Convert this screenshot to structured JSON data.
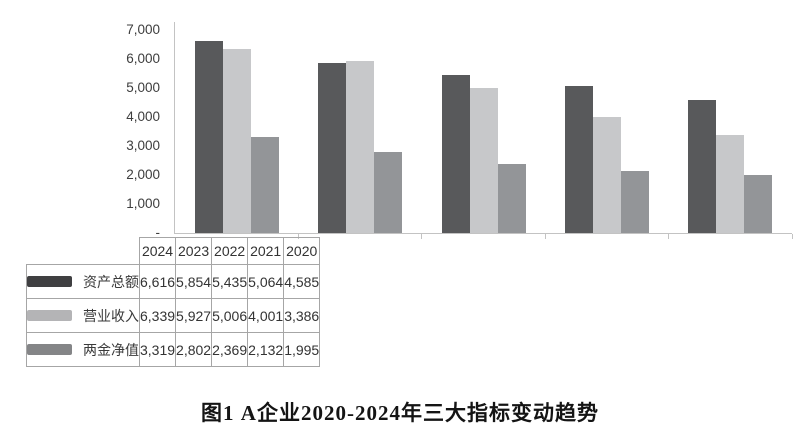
{
  "caption": "图1 A企业2020-2024年三大指标变动趋势",
  "colors": {
    "series_dark": "#58595b",
    "series_light": "#c7c8ca",
    "series_medium": "#939598",
    "swatch_dark": "#3f3f41",
    "swatch_light": "#b4b4b6",
    "swatch_medium": "#848587",
    "axis_line": "#c3c3c3",
    "table_border": "#a6a6a6",
    "text": "#333333"
  },
  "chart_data": {
    "type": "bar",
    "title": "",
    "xlabel": "",
    "ylabel": "",
    "categories": [
      "2024",
      "2023",
      "2022",
      "2021",
      "2020"
    ],
    "series": [
      {
        "name": "资产总额",
        "color": "#58595b",
        "swatch_color": "#3f3f41",
        "values": [
          6616,
          5854,
          5435,
          5064,
          4585
        ]
      },
      {
        "name": "营业收入",
        "color": "#c7c8ca",
        "swatch_color": "#b4b4b6",
        "values": [
          6339,
          5927,
          5006,
          4001,
          3386
        ]
      },
      {
        "name": "两金净值",
        "color": "#939598",
        "swatch_color": "#848587",
        "values": [
          3319,
          2802,
          2369,
          2132,
          1995
        ]
      }
    ],
    "ylim": [
      0,
      7000
    ],
    "y_ticks": [
      "7,000",
      "6,000",
      "5,000",
      "4,000",
      "3,000",
      "2,000",
      "1,000",
      "-"
    ],
    "grid": false,
    "legend_position": "data-table-left-column"
  },
  "table": {
    "years": [
      "2024",
      "2023",
      "2022",
      "2021",
      "2020"
    ],
    "rows": [
      {
        "label": "资产总额",
        "values": [
          "6,616",
          "5,854",
          "5,435",
          "5,064",
          "4,585"
        ]
      },
      {
        "label": "营业收入",
        "values": [
          "6,339",
          "5,927",
          "5,006",
          "4,001",
          "3,386"
        ]
      },
      {
        "label": "两金净值",
        "values": [
          "3,319",
          "2,802",
          "2,369",
          "2,132",
          "1,995"
        ]
      }
    ]
  }
}
